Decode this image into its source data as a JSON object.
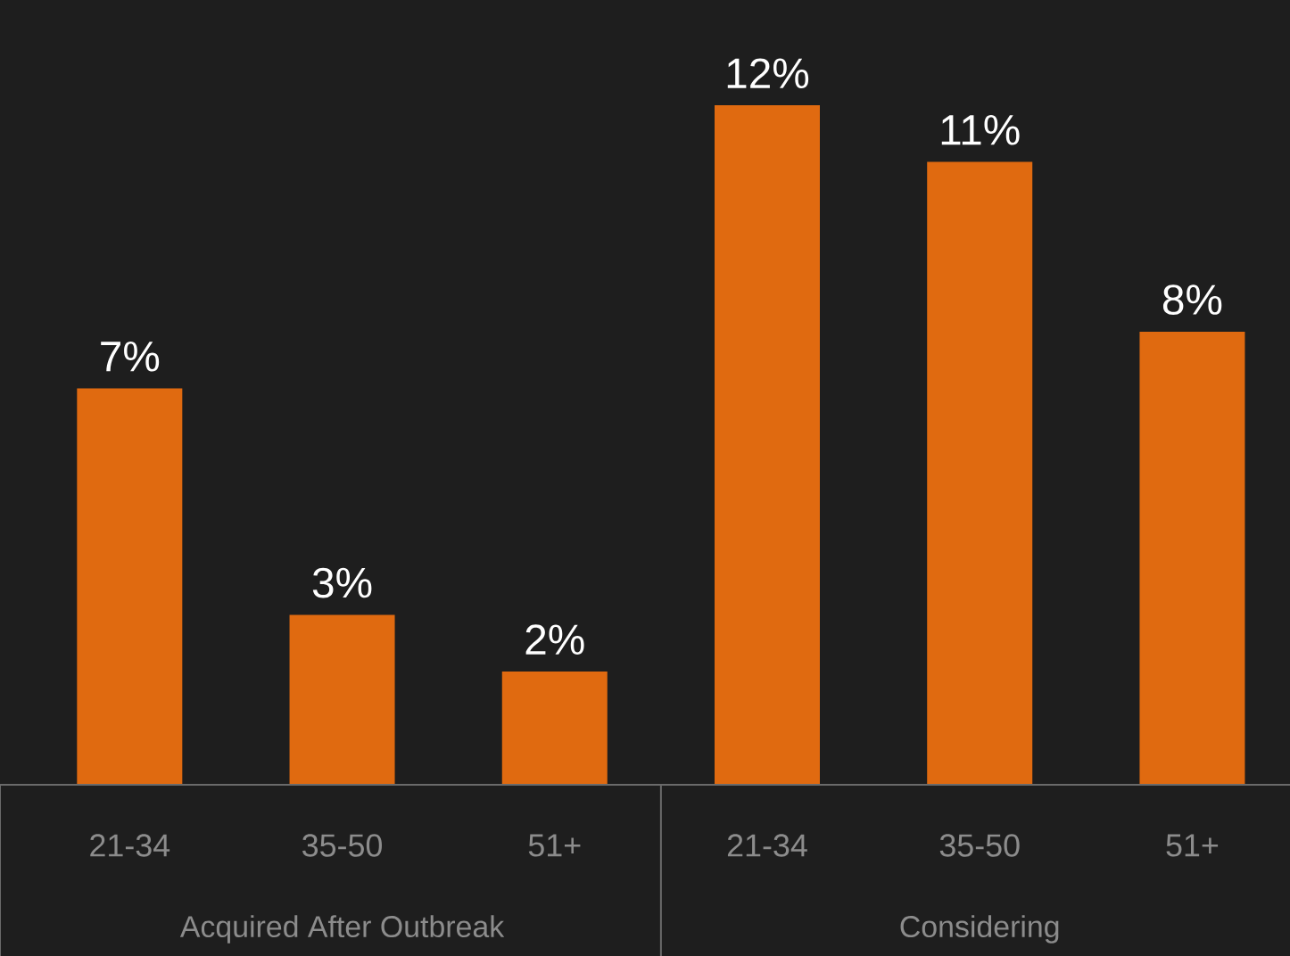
{
  "chart_data": {
    "type": "bar",
    "categories": [
      "21-34",
      "35-50",
      "51+",
      "21-34",
      "35-50",
      "51+"
    ],
    "values": [
      7,
      3,
      2,
      12,
      11,
      8
    ],
    "value_labels": [
      "7%",
      "3%",
      "2%",
      "12%",
      "11%",
      "8%"
    ],
    "color": "#e06a10",
    "annotations": [
      "Acquired After Outbreak",
      "Considering"
    ]
  }
}
